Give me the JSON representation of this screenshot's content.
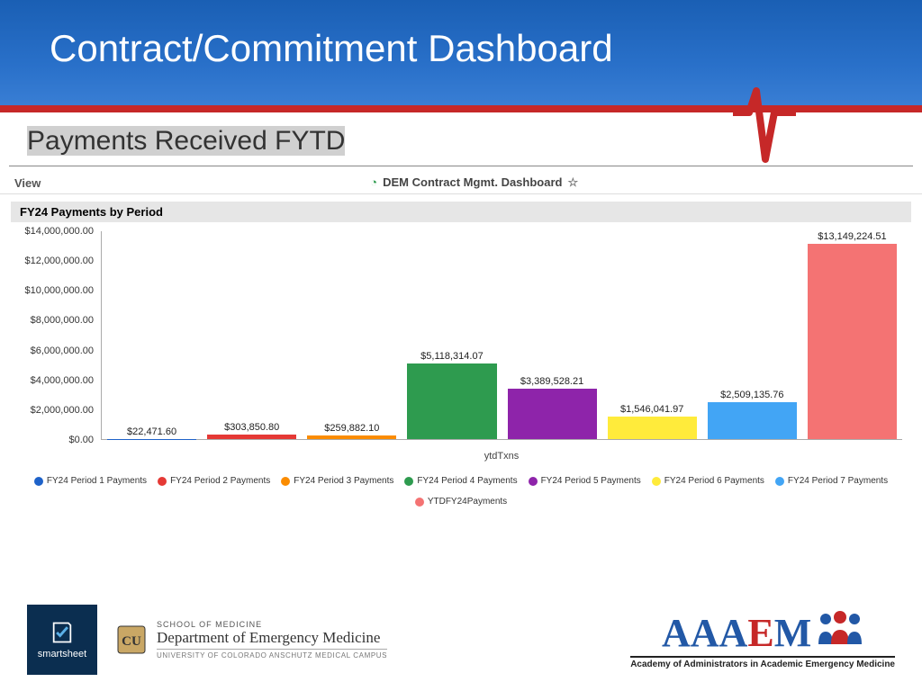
{
  "header": {
    "title": "Contract/Commitment Dashboard",
    "band_gradient_top": "#1a5fb4",
    "band_gradient_bottom": "#3a7fd5",
    "stripe_color": "#c62828"
  },
  "section": {
    "title": "Payments Received FYTD",
    "highlight_bg": "#d0d0d0"
  },
  "toolbar": {
    "view_label": "View",
    "dashboard_title": "DEM Contract Mgmt. Dashboard",
    "clock_color": "#2e9b4f"
  },
  "chart": {
    "panel_title": "FY24 Payments by Period",
    "type": "bar",
    "x_label": "ytdTxns",
    "ylim": [
      0,
      14000000
    ],
    "ytick_step": 2000000,
    "yticks": [
      "$0.00",
      "$2,000,000.00",
      "$4,000,000.00",
      "$6,000,000.00",
      "$8,000,000.00",
      "$10,000,000.00",
      "$12,000,000.00",
      "$14,000,000.00"
    ],
    "background_color": "#ffffff",
    "axis_color": "#aaaaaa",
    "label_fontsize": 11,
    "series": [
      {
        "label": "FY24 Period 1 Payments",
        "value": 22471.6,
        "value_label": "$22,471.60",
        "color": "#1e62c9"
      },
      {
        "label": "FY24 Period 2 Payments",
        "value": 303850.8,
        "value_label": "$303,850.80",
        "color": "#e53935"
      },
      {
        "label": "FY24 Period 3 Payments",
        "value": 259882.1,
        "value_label": "$259,882.10",
        "color": "#fb8c00"
      },
      {
        "label": "FY24 Period 4 Payments",
        "value": 5118314.07,
        "value_label": "$5,118,314.07",
        "color": "#2e9b4f"
      },
      {
        "label": "FY24 Period 5 Payments",
        "value": 3389528.21,
        "value_label": "$3,389,528.21",
        "color": "#8e24aa"
      },
      {
        "label": "FY24 Period 6 Payments",
        "value": 1546041.97,
        "value_label": "$1,546,041.97",
        "color": "#ffeb3b"
      },
      {
        "label": "FY24 Period 7 Payments",
        "value": 2509135.76,
        "value_label": "$2,509,135.76",
        "color": "#42a5f5"
      },
      {
        "label": "YTDFY24Payments",
        "value": 13149224.51,
        "value_label": "$13,149,224.51",
        "color": "#f47373"
      }
    ]
  },
  "footer": {
    "smartsheet_label": "smartsheet",
    "smartsheet_bg": "#0b2e50",
    "cu": {
      "line1": "SCHOOL OF MEDICINE",
      "line2": "Department of Emergency Medicine",
      "line3": "UNIVERSITY OF COLORADO ANSCHUTZ MEDICAL CAMPUS",
      "gold": "#c9a765"
    },
    "aaaem": {
      "letters": "AAAEM",
      "tagline": "Academy of Administrators in Academic Emergency Medicine",
      "blue": "#2258a6",
      "red": "#c62828"
    }
  }
}
